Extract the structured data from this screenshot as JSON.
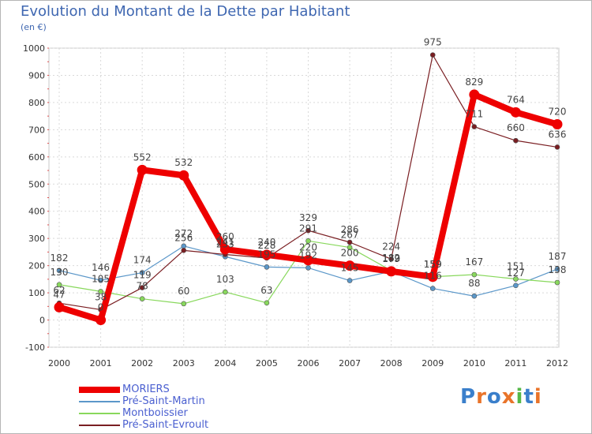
{
  "chart_data": {
    "type": "line",
    "title": "Evolution du Montant de la Dette par Habitant",
    "subtitle": "(en €)",
    "xlabel": "",
    "ylabel": "",
    "ylim": [
      -100,
      1000
    ],
    "yticks": [
      -100,
      0,
      100,
      200,
      300,
      400,
      500,
      600,
      700,
      800,
      900,
      1000
    ],
    "grid": true,
    "categories": [
      "2000",
      "2001",
      "2002",
      "2003",
      "2004",
      "2005",
      "2006",
      "2007",
      "2008",
      "2009",
      "2010",
      "2011",
      "2012"
    ],
    "series": [
      {
        "name": "MORIERS",
        "color": "#ee0000",
        "values": [
          47,
          0,
          552,
          532,
          260,
          240,
          220,
          200,
          179,
          159,
          829,
          764,
          720
        ]
      },
      {
        "name": "Pré-Saint-Martin",
        "color": "#5b97c9",
        "values": [
          182,
          146,
          174,
          272,
          233,
          195,
          192,
          145,
          179,
          116,
          88,
          127,
          187
        ]
      },
      {
        "name": "Montboissier",
        "color": "#88d85c",
        "values": [
          130,
          105,
          78,
          60,
          103,
          63,
          291,
          267,
          182,
          159,
          167,
          151,
          138
        ]
      },
      {
        "name": "Pré-Saint-Evroult",
        "color": "#7a1e22",
        "values": [
          62,
          38,
          119,
          256,
          241,
          228,
          329,
          286,
          224,
          975,
          711,
          660,
          636
        ]
      }
    ]
  },
  "legend": {
    "items": [
      "MORIERS",
      "Pré-Saint-Martin",
      "Montboissier",
      "Pré-Saint-Evroult"
    ]
  },
  "branding": {
    "logo_text": "Proxiti",
    "logo_colors": [
      "#3a7fcb",
      "#e9742a",
      "#3a7fcb",
      "#e9742a",
      "#56b848",
      "#3a7fcb",
      "#e9742a"
    ]
  }
}
